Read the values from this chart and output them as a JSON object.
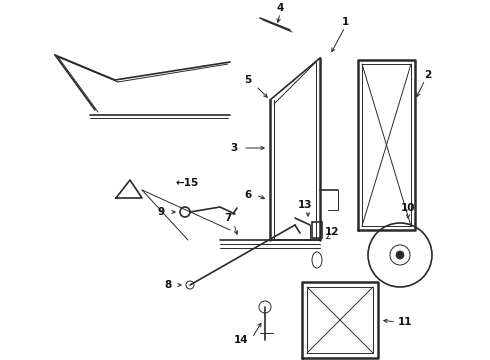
{
  "bg_color": "#ffffff",
  "line_color": "#2a2a2a",
  "label_color": "#111111",
  "figsize": [
    4.9,
    3.6
  ],
  "dpi": 100,
  "label_fontsize": 7.5
}
